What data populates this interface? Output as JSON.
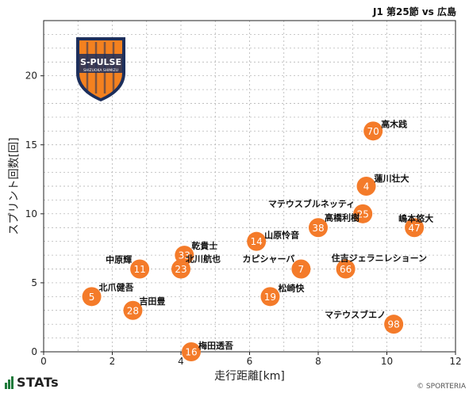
{
  "header": {
    "title": "J1 第25節 vs 広島"
  },
  "footer": {
    "brand": "STATs",
    "copyright": "© SPORTERIA"
  },
  "emblem": {
    "text": "S-PULSE",
    "subtext": "SHIZUOKA SHIMIZU",
    "colors": {
      "primary": "#f4811f",
      "secondary": "#1d2f5c"
    }
  },
  "colors": {
    "dot": "#f47b2a",
    "dot_text": "#ffffff",
    "axis": "#222222",
    "grid": "#aaaaaa"
  },
  "chart_data": {
    "type": "scatter",
    "xlabel": "走行距離[km]",
    "ylabel": "スプリント回数[回]",
    "xlim": [
      0,
      12
    ],
    "ylim": [
      0,
      24
    ],
    "xticks": [
      0,
      2,
      4,
      6,
      8,
      10,
      12
    ],
    "yticks": [
      0,
      5,
      10,
      15,
      20
    ],
    "grid": true,
    "points": [
      {
        "number": "70",
        "name": "高木践",
        "x": 9.6,
        "y": 16
      },
      {
        "number": "4",
        "name": "蓮川壮大",
        "x": 9.4,
        "y": 12
      },
      {
        "number": "25",
        "name": "マテウスブルネッティ",
        "x": 9.3,
        "y": 10
      },
      {
        "number": "47",
        "name": "嶋本悠大",
        "x": 10.8,
        "y": 9
      },
      {
        "number": "38",
        "name": "高橋利樹",
        "x": 8.0,
        "y": 9
      },
      {
        "number": "14",
        "name": "山原怜音",
        "x": 6.2,
        "y": 8
      },
      {
        "number": "33",
        "name": "乾貴士",
        "x": 4.1,
        "y": 7
      },
      {
        "number": "23",
        "name": "北川航也",
        "x": 4.0,
        "y": 6
      },
      {
        "number": "11",
        "name": "中原輝",
        "x": 2.8,
        "y": 6
      },
      {
        "number": "7",
        "name": "カピシャーバ",
        "x": 7.5,
        "y": 6
      },
      {
        "number": "66",
        "name": "住吉ジェラニレショーン",
        "x": 8.8,
        "y": 6
      },
      {
        "number": "5",
        "name": "北爪健吾",
        "x": 1.4,
        "y": 4
      },
      {
        "number": "19",
        "name": "松崎快",
        "x": 6.6,
        "y": 4
      },
      {
        "number": "28",
        "name": "吉田豊",
        "x": 2.6,
        "y": 3
      },
      {
        "number": "98",
        "name": "マテウスブエノ",
        "x": 10.2,
        "y": 2
      },
      {
        "number": "16",
        "name": "梅田透吾",
        "x": 4.3,
        "y": 0
      }
    ]
  }
}
